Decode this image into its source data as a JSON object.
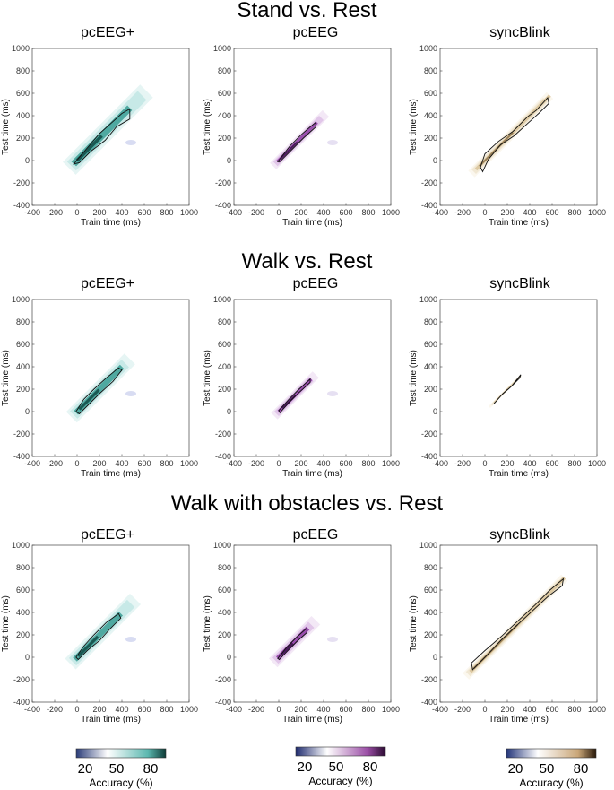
{
  "rows": [
    {
      "title": "Stand vs. Rest"
    },
    {
      "title": "Walk vs. Rest"
    },
    {
      "title": "Walk with obstacles vs. Rest"
    }
  ],
  "panel_titles": [
    "pcEEG+",
    "pcEEG",
    "syncBlink"
  ],
  "axis": {
    "xlabel": "Train time (ms)",
    "ylabel": "Test time (ms)",
    "x_ticks": [
      "-400",
      "-200",
      "0",
      "200",
      "400",
      "600",
      "800",
      "1000"
    ],
    "y_ticks": [
      "1000",
      "800",
      "600",
      "400",
      "200",
      "0",
      "-200",
      "-400"
    ]
  },
  "colorbars": [
    {
      "name": "pcEEG+",
      "colors": [
        "#2a3c78",
        "#ffffff",
        "#5cb8b0",
        "#0d3b36"
      ],
      "ticks": [
        "20",
        "50",
        "80"
      ],
      "title": "Accuracy (%)"
    },
    {
      "name": "pcEEG",
      "colors": [
        "#1e2a6e",
        "#ffffff",
        "#9b4ea6",
        "#2a0a30"
      ],
      "ticks": [
        "20",
        "50",
        "80"
      ],
      "title": "Accuracy (%)"
    },
    {
      "name": "syncBlink",
      "colors": [
        "#23357a",
        "#ffffff",
        "#c9a678",
        "#2a1a0a"
      ],
      "ticks": [
        "20",
        "50",
        "80"
      ],
      "title": "Accuracy (%)"
    }
  ],
  "chart_data": [
    {
      "type": "heatmap",
      "row": "Stand vs. Rest",
      "title": "pcEEG+",
      "xlabel": "Train time (ms)",
      "ylabel": "Test time (ms)",
      "xlim": [
        -400,
        1000
      ],
      "ylim": [
        -400,
        1000
      ],
      "palette": "teal",
      "diag_start": -30,
      "diag_end": 470,
      "width_ms": 60,
      "faint_end": 620,
      "contour": [
        [
          -30,
          -30
        ],
        [
          80,
          100
        ],
        [
          200,
          240
        ],
        [
          300,
          330
        ],
        [
          400,
          420
        ],
        [
          470,
          460
        ],
        [
          470,
          370
        ],
        [
          350,
          300
        ],
        [
          250,
          180
        ],
        [
          120,
          80
        ],
        [
          20,
          -20
        ]
      ]
    },
    {
      "type": "heatmap",
      "row": "Stand vs. Rest",
      "title": "pcEEG",
      "xlabel": "Train time (ms)",
      "ylabel": "Test time (ms)",
      "xlim": [
        -400,
        1000
      ],
      "ylim": [
        -400,
        1000
      ],
      "palette": "purple",
      "diag_start": -10,
      "diag_end": 340,
      "width_ms": 30,
      "faint_end": 420,
      "contour": [
        [
          -10,
          -10
        ],
        [
          100,
          130
        ],
        [
          200,
          230
        ],
        [
          280,
          300
        ],
        [
          330,
          340
        ],
        [
          330,
          300
        ],
        [
          220,
          200
        ],
        [
          120,
          100
        ],
        [
          10,
          -10
        ]
      ]
    },
    {
      "type": "heatmap",
      "row": "Stand vs. Rest",
      "title": "syncBlink",
      "xlabel": "Train time (ms)",
      "ylabel": "Test time (ms)",
      "xlim": [
        -400,
        1000
      ],
      "ylim": [
        -400,
        1000
      ],
      "palette": "tan",
      "diag_start": -80,
      "diag_end": 580,
      "width_ms": 30,
      "faint_end": 580,
      "contour": [
        [
          -40,
          -60
        ],
        [
          0,
          60
        ],
        [
          120,
          170
        ],
        [
          250,
          260
        ],
        [
          380,
          390
        ],
        [
          460,
          450
        ],
        [
          560,
          560
        ],
        [
          570,
          510
        ],
        [
          480,
          420
        ],
        [
          380,
          330
        ],
        [
          260,
          220
        ],
        [
          140,
          140
        ],
        [
          30,
          10
        ],
        [
          -20,
          -100
        ]
      ]
    },
    {
      "type": "heatmap",
      "row": "Walk vs. Rest",
      "title": "pcEEG+",
      "xlabel": "Train time (ms)",
      "ylabel": "Test time (ms)",
      "xlim": [
        -400,
        1000
      ],
      "ylim": [
        -400,
        1000
      ],
      "palette": "teal",
      "diag_start": -10,
      "diag_end": 400,
      "width_ms": 50,
      "faint_end": 470,
      "contour": [
        [
          -10,
          0
        ],
        [
          60,
          110
        ],
        [
          150,
          200
        ],
        [
          260,
          300
        ],
        [
          370,
          390
        ],
        [
          400,
          370
        ],
        [
          320,
          270
        ],
        [
          200,
          160
        ],
        [
          100,
          60
        ],
        [
          20,
          -20
        ]
      ]
    },
    {
      "type": "heatmap",
      "row": "Walk vs. Rest",
      "title": "pcEEG",
      "xlabel": "Train time (ms)",
      "ylabel": "Test time (ms)",
      "xlim": [
        -400,
        1000
      ],
      "ylim": [
        -400,
        1000
      ],
      "palette": "purple",
      "diag_start": 0,
      "diag_end": 290,
      "width_ms": 30,
      "faint_end": 330,
      "contour": [
        [
          0,
          10
        ],
        [
          90,
          110
        ],
        [
          180,
          200
        ],
        [
          280,
          290
        ],
        [
          280,
          260
        ],
        [
          180,
          170
        ],
        [
          90,
          80
        ],
        [
          10,
          -10
        ]
      ]
    },
    {
      "type": "heatmap",
      "row": "Walk vs. Rest",
      "title": "syncBlink",
      "xlabel": "Train time (ms)",
      "ylabel": "Test time (ms)",
      "xlim": [
        -400,
        1000
      ],
      "ylim": [
        -400,
        1000
      ],
      "palette": "tan",
      "diag_start": 80,
      "diag_end": 320,
      "width_ms": 8,
      "faint_end": 320,
      "contour": [
        [
          80,
          70
        ],
        [
          160,
          160
        ],
        [
          240,
          230
        ],
        [
          320,
          330
        ],
        [
          310,
          300
        ],
        [
          230,
          220
        ],
        [
          150,
          150
        ],
        [
          85,
          75
        ]
      ]
    },
    {
      "type": "heatmap",
      "row": "Walk with obstacles vs. Rest",
      "title": "pcEEG+",
      "xlabel": "Train time (ms)",
      "ylabel": "Test time (ms)",
      "xlim": [
        -400,
        1000
      ],
      "ylim": [
        -400,
        1000
      ],
      "palette": "teal",
      "diag_start": -20,
      "diag_end": 390,
      "width_ms": 50,
      "faint_end": 520,
      "contour": [
        [
          -10,
          0
        ],
        [
          60,
          100
        ],
        [
          150,
          200
        ],
        [
          260,
          310
        ],
        [
          370,
          390
        ],
        [
          390,
          350
        ],
        [
          300,
          260
        ],
        [
          200,
          150
        ],
        [
          90,
          60
        ],
        [
          10,
          -20
        ]
      ]
    },
    {
      "type": "heatmap",
      "row": "Walk with obstacles vs. Rest",
      "title": "pcEEG",
      "xlabel": "Train time (ms)",
      "ylabel": "Test time (ms)",
      "xlim": [
        -400,
        1000
      ],
      "ylim": [
        -400,
        1000
      ],
      "palette": "purple",
      "diag_start": -10,
      "diag_end": 260,
      "width_ms": 40,
      "faint_end": 330,
      "contour": [
        [
          -10,
          -10
        ],
        [
          70,
          90
        ],
        [
          160,
          180
        ],
        [
          250,
          260
        ],
        [
          250,
          220
        ],
        [
          160,
          140
        ],
        [
          70,
          50
        ],
        [
          5,
          -20
        ]
      ]
    },
    {
      "type": "heatmap",
      "row": "Walk with obstacles vs. Rest",
      "title": "syncBlink",
      "xlabel": "Train time (ms)",
      "ylabel": "Test time (ms)",
      "xlim": [
        -400,
        1000
      ],
      "ylim": [
        -400,
        1000
      ],
      "palette": "tan",
      "diag_start": -130,
      "diag_end": 710,
      "width_ms": 30,
      "faint_end": 710,
      "contour": [
        [
          -120,
          -50
        ],
        [
          0,
          60
        ],
        [
          150,
          190
        ],
        [
          300,
          330
        ],
        [
          450,
          470
        ],
        [
          580,
          600
        ],
        [
          700,
          700
        ],
        [
          690,
          640
        ],
        [
          560,
          540
        ],
        [
          420,
          410
        ],
        [
          280,
          280
        ],
        [
          140,
          150
        ],
        [
          20,
          20
        ],
        [
          -110,
          -110
        ]
      ]
    }
  ]
}
